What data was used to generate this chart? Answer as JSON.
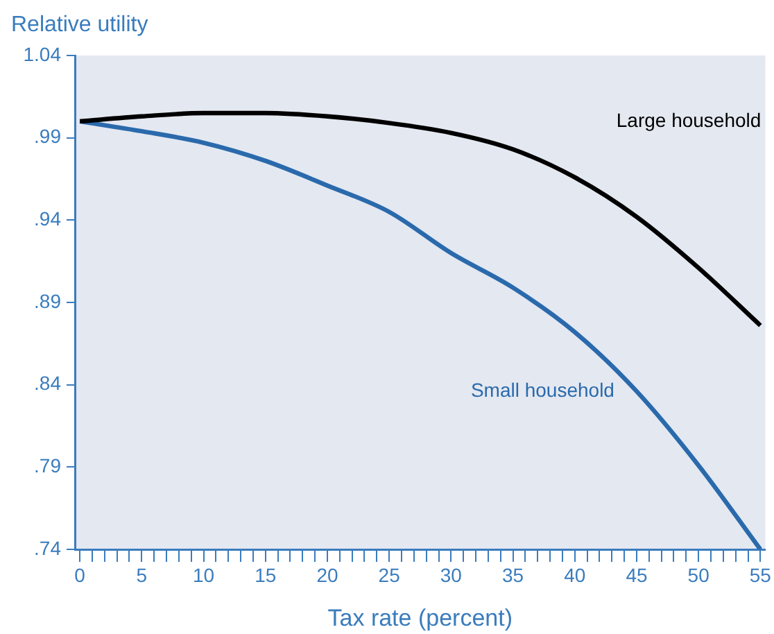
{
  "chart_data": {
    "type": "line",
    "ylabel": "Relative utility",
    "xlabel": "Tax rate (percent)",
    "x": [
      0,
      5,
      10,
      15,
      20,
      25,
      30,
      35,
      40,
      45,
      50,
      55
    ],
    "series": [
      {
        "name": "Large household",
        "color": "#000000",
        "values": [
          1.0,
          1.003,
          1.005,
          1.005,
          1.003,
          0.999,
          0.993,
          0.983,
          0.966,
          0.942,
          0.911,
          0.876
        ]
      },
      {
        "name": "Small household",
        "color": "#2a6aac",
        "values": [
          1.0,
          0.994,
          0.987,
          0.976,
          0.961,
          0.945,
          0.92,
          0.899,
          0.872,
          0.836,
          0.791,
          0.74
        ]
      }
    ],
    "xlim": [
      -0.4,
      55.4
    ],
    "xticks": [
      0,
      {
        "value": 1,
        "label": null
      },
      {
        "value": 2,
        "label": null
      },
      {
        "value": 3,
        "label": null
      },
      {
        "value": 4,
        "label": null
      },
      5,
      {
        "value": 6,
        "label": null
      },
      {
        "value": 7,
        "label": null
      },
      {
        "value": 8,
        "label": null
      },
      {
        "value": 9,
        "label": null
      },
      10,
      {
        "value": 11,
        "label": null
      },
      {
        "value": 12,
        "label": null
      },
      {
        "value": 13,
        "label": null
      },
      {
        "value": 14,
        "label": null
      },
      15,
      {
        "value": 16,
        "label": null
      },
      {
        "value": 17,
        "label": null
      },
      {
        "value": 18,
        "label": null
      },
      {
        "value": 19,
        "label": null
      },
      20,
      {
        "value": 21,
        "label": null
      },
      {
        "value": 22,
        "label": null
      },
      {
        "value": 23,
        "label": null
      },
      {
        "value": 24,
        "label": null
      },
      25,
      {
        "value": 26,
        "label": null
      },
      {
        "value": 27,
        "label": null
      },
      {
        "value": 28,
        "label": null
      },
      {
        "value": 29,
        "label": null
      },
      30,
      {
        "value": 31,
        "label": null
      },
      {
        "value": 32,
        "label": null
      },
      {
        "value": 33,
        "label": null
      },
      {
        "value": 34,
        "label": null
      },
      35,
      {
        "value": 36,
        "label": null
      },
      {
        "value": 37,
        "label": null
      },
      {
        "value": 38,
        "label": null
      },
      {
        "value": 39,
        "label": null
      },
      40,
      {
        "value": 41,
        "label": null
      },
      {
        "value": 42,
        "label": null
      },
      {
        "value": 43,
        "label": null
      },
      {
        "value": 44,
        "label": null
      },
      45,
      {
        "value": 46,
        "label": null
      },
      {
        "value": 47,
        "label": null
      },
      {
        "value": 48,
        "label": null
      },
      {
        "value": 49,
        "label": null
      },
      50,
      {
        "value": 51,
        "label": null
      },
      {
        "value": 52,
        "label": null
      },
      {
        "value": 53,
        "label": null
      },
      {
        "value": 54,
        "label": null
      },
      55
    ],
    "ylim": [
      0.74,
      1.04
    ],
    "yticks": [
      {
        "value": 0.74,
        "label": ".74"
      },
      {
        "value": 0.79,
        "label": ".79"
      },
      {
        "value": 0.84,
        "label": ".84"
      },
      {
        "value": 0.89,
        "label": ".89"
      },
      {
        "value": 0.94,
        "label": ".94"
      },
      {
        "value": 0.99,
        "label": ".99"
      },
      1.04
    ],
    "grid": false,
    "legend": false,
    "marker": "none",
    "line_style": "solid"
  }
}
